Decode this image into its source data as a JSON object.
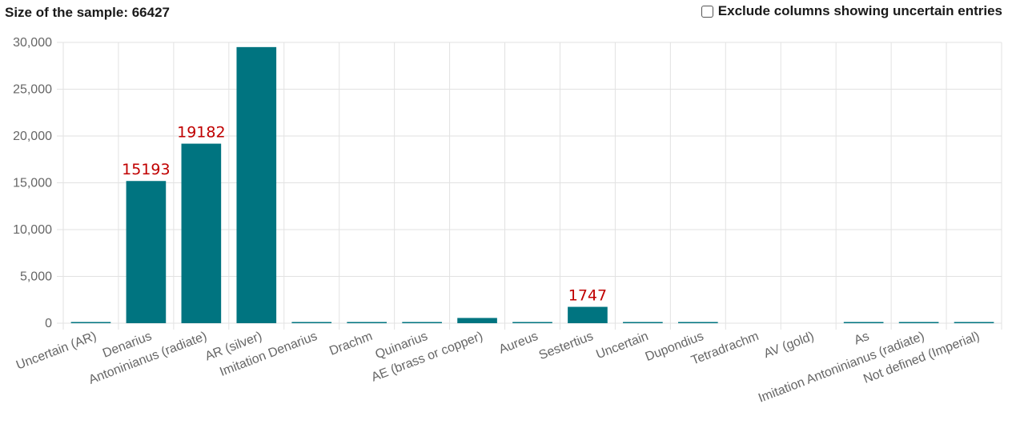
{
  "header": {
    "sample_size": "Size of the sample: 66427",
    "exclude_label": "Exclude columns showing uncertain entries",
    "exclude_checked": false
  },
  "chart_data": {
    "type": "bar",
    "categories": [
      "Uncertain (AR)",
      "Denarius",
      "Antoninianus (radiate)",
      "AR (silver)",
      "Imitation Denarius",
      "Drachm",
      "Quinarius",
      "AE (brass or copper)",
      "Aureus",
      "Sestertius",
      "Uncertain",
      "Dupondius",
      "Tetradrachm",
      "AV (gold)",
      "As",
      "Imitation Antoninianus (radiate)",
      "Not defined (Imperial)"
    ],
    "values": [
      15,
      15193,
      19182,
      29500,
      20,
      12,
      10,
      560,
      15,
      1747,
      40,
      20,
      0,
      0,
      15,
      15,
      15
    ],
    "data_labels": [
      {
        "category": "Denarius",
        "text": "15193"
      },
      {
        "category": "Antoninianus (radiate)",
        "text": "19182"
      },
      {
        "category": "Sestertius",
        "text": "1747"
      }
    ],
    "y_ticks": [
      "0",
      "5,000",
      "10,000",
      "15,000",
      "20,000",
      "25,000",
      "30,000"
    ],
    "ylim": [
      0,
      30000
    ],
    "grid": true,
    "legend": "none",
    "bar_color": "#007480",
    "grid_color": "#e2e2e2",
    "label_color": "#c00000",
    "title": "",
    "xlabel": "",
    "ylabel": ""
  }
}
